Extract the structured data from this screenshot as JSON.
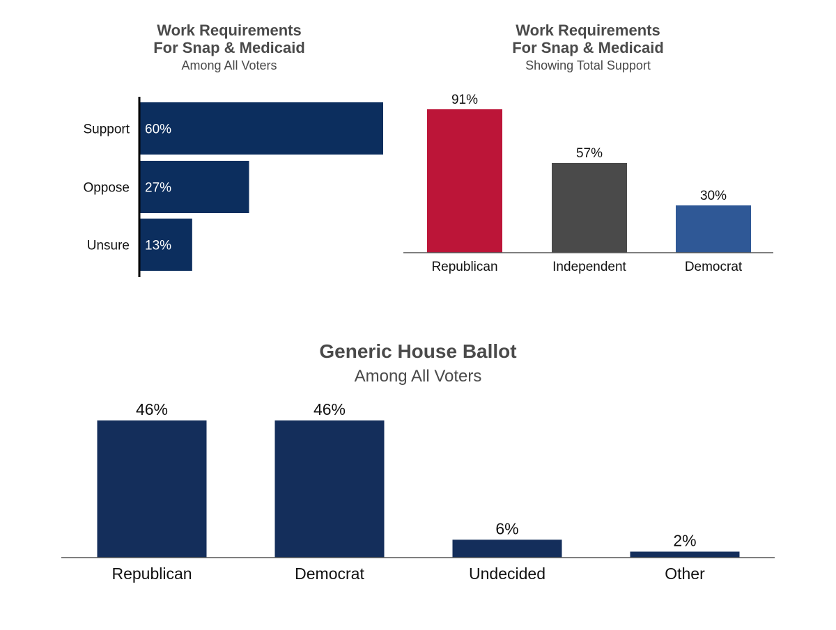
{
  "chart_data": [
    {
      "type": "bar",
      "orientation": "horizontal",
      "title": "Work Requirements\nFor Snap & Medicaid",
      "subtitle": "Among All Voters",
      "categories": [
        "Support",
        "Oppose",
        "Unsure"
      ],
      "values": [
        60,
        27,
        13
      ],
      "value_labels": [
        "60%",
        "27%",
        "13%"
      ],
      "unit": "%",
      "colors": {
        "bar": "#0c2e5e",
        "label": "#ffffff"
      },
      "xlim": [
        0,
        60
      ],
      "grid": false,
      "legend": "none"
    },
    {
      "type": "bar",
      "title": "Work Requirements\nFor Snap & Medicaid",
      "subtitle": "Showing Total Support",
      "categories": [
        "Republican",
        "Independent",
        "Democrat"
      ],
      "values": [
        91,
        57,
        30
      ],
      "value_labels": [
        "91%",
        "57%",
        "30%"
      ],
      "unit": "%",
      "colors": {
        "bars": [
          "#bc1538",
          "#4a4a4a",
          "#2f5896"
        ]
      },
      "ylim": [
        0,
        91
      ],
      "grid": false,
      "legend": "none"
    },
    {
      "type": "bar",
      "title": "Generic House Ballot",
      "subtitle": "Among All Voters",
      "categories": [
        "Republican",
        "Democrat",
        "Undecided",
        "Other"
      ],
      "values": [
        46,
        46,
        6,
        2
      ],
      "value_labels": [
        "46%",
        "46%",
        "6%",
        "2%"
      ],
      "unit": "%",
      "colors": {
        "bar": "#142e5b"
      },
      "ylim": [
        0,
        46
      ],
      "grid": false,
      "legend": "none"
    }
  ]
}
